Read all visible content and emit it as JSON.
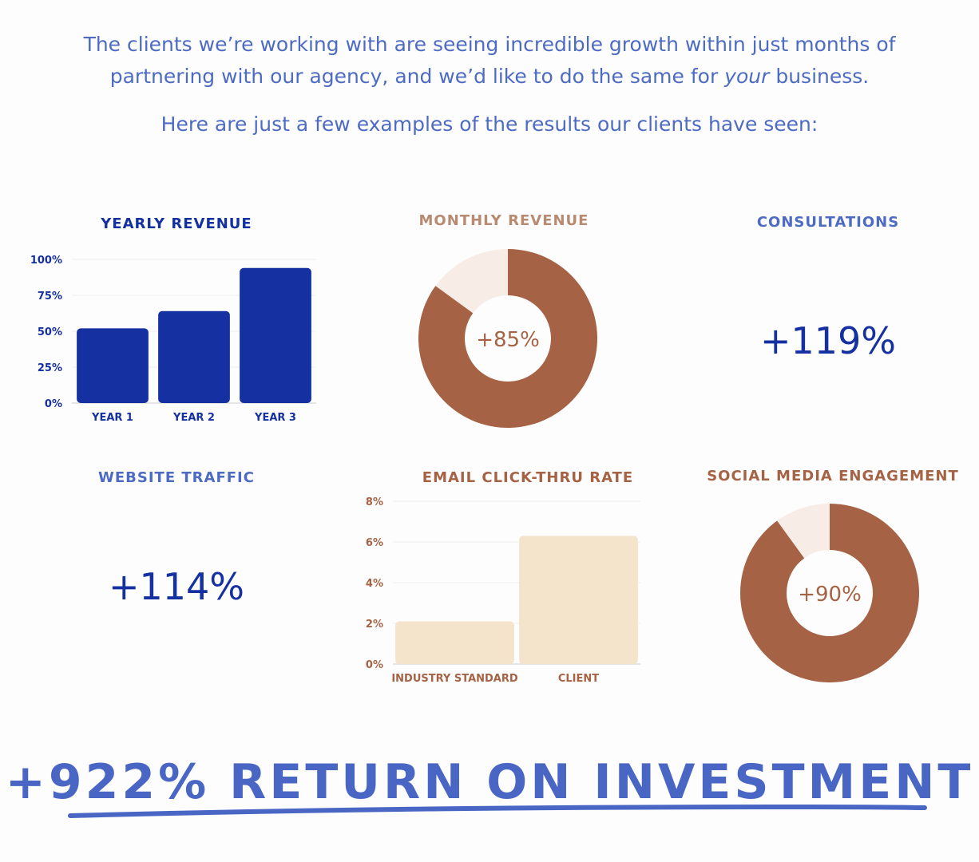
{
  "intro": {
    "line1": "The clients we’re working with are seeing incredible growth within just months of",
    "line2_a": "partnering with our agency, and we’d like to do the same for ",
    "line2_em": "your",
    "line2_b": " business.",
    "line3": "Here are just a few examples of the results our clients have seen:"
  },
  "colors": {
    "blue_dark": "#1530a0",
    "blue_light": "#4e6bc4",
    "brown": "#a66244",
    "cream": "#f5e4cc",
    "pale": "#f7ede6",
    "tan_text": "#b88a72"
  },
  "cards": {
    "yearly_revenue_title": "YEARLY REVENUE",
    "monthly_revenue_title": "MONTHLY REVENUE",
    "consultations_title": "CONSULTATIONS",
    "consultations_value": "+119%",
    "website_traffic_title": "WEBSITE TRAFFIC",
    "website_traffic_value": "+114%",
    "email_ctr_title": "EMAIL CLICK-THRU RATE",
    "social_title": "SOCIAL MEDIA ENGAGEMENT"
  },
  "chart_data": [
    {
      "type": "bar",
      "title": "YEARLY REVENUE",
      "categories": [
        "YEAR 1",
        "YEAR 2",
        "YEAR 3"
      ],
      "values": [
        52,
        64,
        94
      ],
      "ylim": [
        0,
        100
      ],
      "yticks": [
        "0%",
        "25%",
        "50%",
        "75%",
        "100%"
      ],
      "grid": true
    },
    {
      "type": "pie",
      "title": "MONTHLY REVENUE",
      "slices": [
        85,
        15
      ],
      "center_label": "+85%"
    },
    {
      "type": "bar",
      "title": "EMAIL CLICK-THRU RATE",
      "categories": [
        "INDUSTRY STANDARD",
        "CLIENT"
      ],
      "values": [
        2.1,
        6.3
      ],
      "ylim": [
        0,
        8
      ],
      "yticks": [
        "0%",
        "2%",
        "4%",
        "6%",
        "8%"
      ],
      "grid": true
    },
    {
      "type": "pie",
      "title": "SOCIAL MEDIA ENGAGEMENT",
      "slices": [
        90,
        10
      ],
      "center_label": "+90%"
    }
  ],
  "roi": "+922% RETURN ON INVESTMENT"
}
